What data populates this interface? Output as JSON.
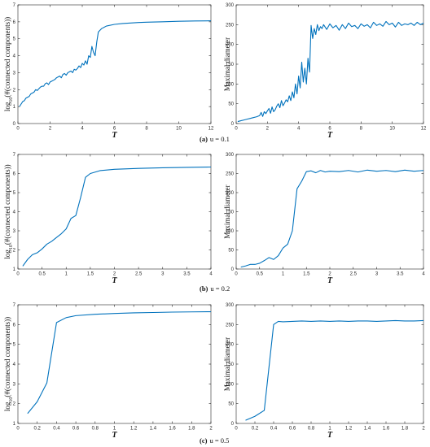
{
  "chart_data": [
    {
      "type": "line",
      "panel": "a-left",
      "ylabel": "log10(#(connected components))",
      "xlabel": "T",
      "xlim": [
        0,
        12
      ],
      "ylim": [
        0,
        7
      ],
      "xticks": [
        0,
        2,
        4,
        6,
        8,
        10,
        12
      ],
      "yticks": [
        0,
        1,
        2,
        3,
        4,
        5,
        6,
        7
      ],
      "color": "#0072BD",
      "x": [
        0.1,
        0.2,
        0.3,
        0.4,
        0.5,
        0.6,
        0.7,
        0.8,
        0.9,
        1.0,
        1.1,
        1.2,
        1.3,
        1.4,
        1.5,
        1.6,
        1.7,
        1.8,
        1.9,
        2.0,
        2.1,
        2.2,
        2.3,
        2.4,
        2.5,
        2.6,
        2.7,
        2.8,
        2.9,
        3.0,
        3.1,
        3.2,
        3.3,
        3.4,
        3.5,
        3.6,
        3.7,
        3.8,
        3.9,
        4.0,
        4.1,
        4.2,
        4.3,
        4.4,
        4.5,
        4.6,
        4.7,
        4.8,
        4.9,
        5.0,
        5.2,
        5.5,
        6,
        6.5,
        7,
        7.5,
        8,
        9,
        10,
        11,
        12
      ],
      "y": [
        1.0,
        1.15,
        1.3,
        1.35,
        1.5,
        1.55,
        1.6,
        1.75,
        1.8,
        1.85,
        2.0,
        1.95,
        2.05,
        2.15,
        2.2,
        2.2,
        2.35,
        2.4,
        2.3,
        2.45,
        2.5,
        2.55,
        2.6,
        2.7,
        2.75,
        2.8,
        2.7,
        2.9,
        2.95,
        2.85,
        3.0,
        3.05,
        3.1,
        3.0,
        3.2,
        3.15,
        3.25,
        3.4,
        3.3,
        3.55,
        3.45,
        3.7,
        3.5,
        4.0,
        3.9,
        4.55,
        4.2,
        4.0,
        4.8,
        5.4,
        5.6,
        5.75,
        5.85,
        5.9,
        5.93,
        5.96,
        5.98,
        6.0,
        6.03,
        6.05,
        6.06
      ]
    },
    {
      "type": "line",
      "panel": "a-right",
      "ylabel": "Maximal diameter",
      "xlabel": "T",
      "xlim": [
        0,
        12
      ],
      "ylim": [
        0,
        300
      ],
      "xticks": [
        0,
        2,
        4,
        6,
        8,
        10,
        12
      ],
      "yticks": [
        0,
        50,
        100,
        150,
        200,
        250,
        300
      ],
      "color": "#0072BD",
      "x": [
        0.1,
        0.3,
        0.5,
        0.7,
        0.9,
        1.1,
        1.3,
        1.5,
        1.6,
        1.7,
        1.8,
        1.9,
        2.0,
        2.1,
        2.2,
        2.3,
        2.4,
        2.5,
        2.6,
        2.7,
        2.8,
        2.9,
        3.0,
        3.1,
        3.2,
        3.3,
        3.4,
        3.5,
        3.6,
        3.7,
        3.8,
        3.9,
        4.0,
        4.1,
        4.2,
        4.3,
        4.4,
        4.5,
        4.6,
        4.7,
        4.8,
        4.9,
        5.0,
        5.1,
        5.2,
        5.3,
        5.4,
        5.5,
        5.6,
        5.8,
        6.0,
        6.2,
        6.4,
        6.6,
        6.8,
        7.0,
        7.2,
        7.4,
        7.6,
        7.8,
        8.0,
        8.2,
        8.4,
        8.6,
        8.8,
        9.0,
        9.2,
        9.4,
        9.6,
        9.8,
        10.0,
        10.2,
        10.4,
        10.6,
        10.8,
        11.0,
        11.2,
        11.4,
        11.6,
        11.8,
        12.0
      ],
      "y": [
        5,
        7,
        9,
        11,
        13,
        15,
        17,
        20,
        28,
        18,
        30,
        25,
        32,
        38,
        26,
        42,
        30,
        35,
        44,
        50,
        40,
        58,
        45,
        52,
        60,
        55,
        70,
        58,
        80,
        65,
        100,
        75,
        120,
        90,
        155,
        105,
        140,
        100,
        165,
        130,
        248,
        215,
        240,
        225,
        250,
        235,
        245,
        240,
        250,
        238,
        252,
        242,
        248,
        236,
        250,
        240,
        254,
        245,
        248,
        240,
        252,
        246,
        250,
        242,
        256,
        248,
        252,
        246,
        258,
        250,
        254,
        244,
        256,
        248,
        252,
        250,
        254,
        248,
        256,
        250,
        254
      ]
    },
    {
      "type": "line",
      "panel": "b-left",
      "ylabel": "log10(#(connected components))",
      "xlabel": "T",
      "xlim": [
        0,
        4
      ],
      "ylim": [
        1,
        7
      ],
      "xticks": [
        0,
        0.5,
        1,
        1.5,
        2,
        2.5,
        3,
        3.5,
        4
      ],
      "yticks": [
        1,
        2,
        3,
        4,
        5,
        6,
        7
      ],
      "color": "#0072BD",
      "x": [
        0.1,
        0.2,
        0.3,
        0.4,
        0.5,
        0.6,
        0.7,
        0.8,
        0.9,
        1.0,
        1.1,
        1.2,
        1.3,
        1.4,
        1.5,
        1.7,
        2.0,
        2.5,
        3.0,
        3.5,
        4.0
      ],
      "y": [
        1.15,
        1.5,
        1.75,
        1.85,
        2.05,
        2.3,
        2.45,
        2.65,
        2.85,
        3.1,
        3.65,
        3.8,
        4.75,
        5.8,
        6.0,
        6.15,
        6.22,
        6.27,
        6.3,
        6.32,
        6.34
      ]
    },
    {
      "type": "line",
      "panel": "b-right",
      "ylabel": "Maximal diameter",
      "xlabel": "T",
      "xlim": [
        0,
        4
      ],
      "ylim": [
        0,
        300
      ],
      "xticks": [
        0,
        0.5,
        1,
        1.5,
        2,
        2.5,
        3,
        3.5,
        4
      ],
      "yticks": [
        0,
        50,
        100,
        150,
        200,
        250,
        300
      ],
      "color": "#0072BD",
      "x": [
        0.1,
        0.2,
        0.3,
        0.4,
        0.5,
        0.6,
        0.7,
        0.8,
        0.9,
        1.0,
        1.1,
        1.2,
        1.3,
        1.4,
        1.5,
        1.6,
        1.7,
        1.8,
        1.9,
        2.0,
        2.2,
        2.4,
        2.6,
        2.8,
        3.0,
        3.2,
        3.4,
        3.6,
        3.8,
        4.0
      ],
      "y": [
        5,
        8,
        12,
        12,
        15,
        22,
        30,
        25,
        35,
        55,
        65,
        100,
        210,
        230,
        255,
        257,
        252,
        258,
        254,
        256,
        255,
        258,
        254,
        259,
        256,
        258,
        255,
        259,
        256,
        258
      ]
    },
    {
      "type": "line",
      "panel": "c-left",
      "ylabel": "log10(#(connected components))",
      "xlabel": "T",
      "xlim": [
        0,
        2
      ],
      "ylim": [
        1,
        7
      ],
      "xticks": [
        0,
        0.2,
        0.4,
        0.6,
        0.8,
        1,
        1.2,
        1.4,
        1.6,
        1.8,
        2
      ],
      "yticks": [
        1,
        2,
        3,
        4,
        5,
        6,
        7
      ],
      "color": "#0072BD",
      "x": [
        0.1,
        0.2,
        0.3,
        0.4,
        0.5,
        0.6,
        0.8,
        1.0,
        1.2,
        1.4,
        1.6,
        1.8,
        2.0
      ],
      "y": [
        1.5,
        2.1,
        3.05,
        6.1,
        6.35,
        6.45,
        6.52,
        6.56,
        6.59,
        6.61,
        6.63,
        6.64,
        6.65
      ]
    },
    {
      "type": "line",
      "panel": "c-right",
      "ylabel": "Maximal diameter",
      "xlabel": "T",
      "xlim": [
        0,
        2
      ],
      "ylim": [
        0,
        300
      ],
      "xticks": [
        0,
        0.2,
        0.4,
        0.6,
        0.8,
        1,
        1.2,
        1.4,
        1.6,
        1.8,
        2
      ],
      "yticks": [
        0,
        50,
        100,
        150,
        200,
        250,
        300
      ],
      "color": "#0072BD",
      "x": [
        0.1,
        0.2,
        0.3,
        0.4,
        0.45,
        0.5,
        0.6,
        0.7,
        0.8,
        0.9,
        1.0,
        1.1,
        1.2,
        1.3,
        1.4,
        1.5,
        1.6,
        1.7,
        1.8,
        1.9,
        2.0
      ],
      "y": [
        8,
        18,
        33,
        250,
        258,
        257,
        258,
        259,
        258,
        259,
        258,
        259,
        258,
        259,
        259,
        258,
        259,
        260,
        259,
        259,
        260
      ]
    }
  ],
  "captions": [
    {
      "label": "(a)",
      "text": "u = 0.1"
    },
    {
      "label": "(b)",
      "text": "u = 0.2"
    },
    {
      "label": "(c)",
      "text": "u = 0.5"
    }
  ]
}
